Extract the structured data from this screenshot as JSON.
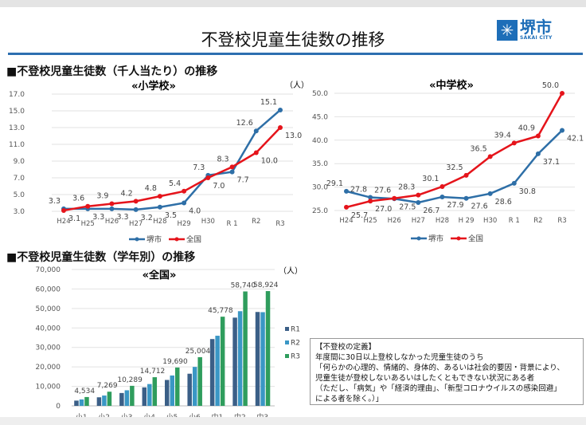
{
  "page": {
    "title": "不登校児童生徒数の推移",
    "logo": {
      "name": "堺市",
      "sub": "SAKAI CITY"
    },
    "heading_per_thousand": "■不登校児童生徒数（千人当たり）の推移",
    "heading_by_grade": "■不登校児童生徒数（学年別）の推移"
  },
  "definition": {
    "lines": [
      "【不登校の定義】",
      "年度間に30日以上登校しなかった児童生徒のうち",
      "「何らかの心理的、情緒的、身体的、あるいは社会的要因・背景により、",
      "児童生徒が登校しないあるいはしたくともできない状況にある者",
      "（ただし、「病気」や「経済的理由」、「新型コロナウイルスの感染回避」",
      "による者を除く。）」"
    ]
  },
  "colors": {
    "sakai": "#2e6fa7",
    "national": "#e5141b",
    "R1": "#3b5f87",
    "R2": "#3a97c5",
    "R3": "#2f9d5d",
    "brand": "#1e6eb8"
  },
  "chart_data": [
    {
      "type": "line",
      "title": "«小学校»",
      "unit": "（人）",
      "categories": [
        "H24",
        "H25",
        "H26",
        "H27",
        "H28",
        "H29",
        "H30",
        "R 1",
        "R2",
        "R3"
      ],
      "y_ticks": [
        "3.0",
        "5.0",
        "7.0",
        "9.0",
        "11.0",
        "13.0",
        "15.0",
        "17.0"
      ],
      "ylim": [
        3,
        17
      ],
      "grid": true,
      "legend": "bottom",
      "series": [
        {
          "name": "堺市",
          "values": [
            3.3,
            3.3,
            3.3,
            3.2,
            3.5,
            4.0,
            7.3,
            7.7,
            12.6,
            15.1
          ],
          "labels": [
            "3.3",
            "3.3",
            "3.3",
            "3.2",
            "3.5",
            "4.0",
            "7.3",
            "7.7",
            "12.6",
            "15.1"
          ]
        },
        {
          "name": "全国",
          "values": [
            3.1,
            3.6,
            3.9,
            4.2,
            4.8,
            5.4,
            7.0,
            8.3,
            10.0,
            13.0
          ],
          "labels": [
            "3.1",
            "3.6",
            "3.9",
            "4.2",
            "4.8",
            "5.4",
            "7.0",
            "8.3",
            "10.0",
            "13.0"
          ]
        }
      ]
    },
    {
      "type": "line",
      "title": "«中学校»",
      "unit": "（人）",
      "categories": [
        "H24",
        "H25",
        "H26",
        "H27",
        "H28",
        "H 29",
        "H30",
        "R 1",
        "R2",
        "R3"
      ],
      "y_ticks": [
        "25.0",
        "30.0",
        "35.0",
        "40.0",
        "45.0",
        "50.0"
      ],
      "ylim": [
        25,
        50
      ],
      "grid": true,
      "legend": "bottom",
      "series": [
        {
          "name": "堺市",
          "values": [
            29.1,
            27.8,
            27.5,
            26.7,
            27.9,
            27.6,
            28.6,
            30.8,
            37.1,
            42.1
          ],
          "labels": [
            "29.1",
            "27.8",
            "27.5",
            "26.7",
            "27.9",
            "27.6",
            "28.6",
            "30.8",
            "37.1",
            "42.1"
          ]
        },
        {
          "name": "全国",
          "values": [
            25.7,
            27.0,
            27.6,
            28.3,
            30.1,
            32.5,
            36.5,
            39.4,
            40.9,
            50.0
          ],
          "labels": [
            "25.7",
            "27.0",
            "27.6",
            "28.3",
            "30.1",
            "32.5",
            "36.5",
            "39.4",
            "40.9",
            "50.0"
          ]
        }
      ]
    },
    {
      "type": "bar",
      "title": "«全国»",
      "unit": "（人）",
      "categories": [
        "小1",
        "小2",
        "小3",
        "小4",
        "小5",
        "小6",
        "中1",
        "中2",
        "中3"
      ],
      "y_ticks": [
        "0",
        "10,000",
        "20,000",
        "30,000",
        "40,000",
        "50,000",
        "60,000",
        "70,000"
      ],
      "ylim": [
        0,
        70000
      ],
      "grid": true,
      "legend": "right",
      "series": [
        {
          "name": "R1",
          "values": [
            2700,
            4400,
            6600,
            9500,
            13300,
            16500,
            34300,
            45300,
            48200
          ]
        },
        {
          "name": "R2",
          "values": [
            3300,
            5300,
            8000,
            11200,
            15600,
            20000,
            36000,
            48600,
            48100
          ]
        },
        {
          "name": "R3",
          "values": [
            4534,
            7269,
            10289,
            14712,
            19690,
            25004,
            45778,
            58740,
            58924
          ],
          "labels": [
            "4,534",
            "7,269",
            "10,289",
            "14,712",
            "19,690",
            "25,004",
            "45,778",
            "58,740",
            "58,924"
          ]
        }
      ]
    }
  ]
}
